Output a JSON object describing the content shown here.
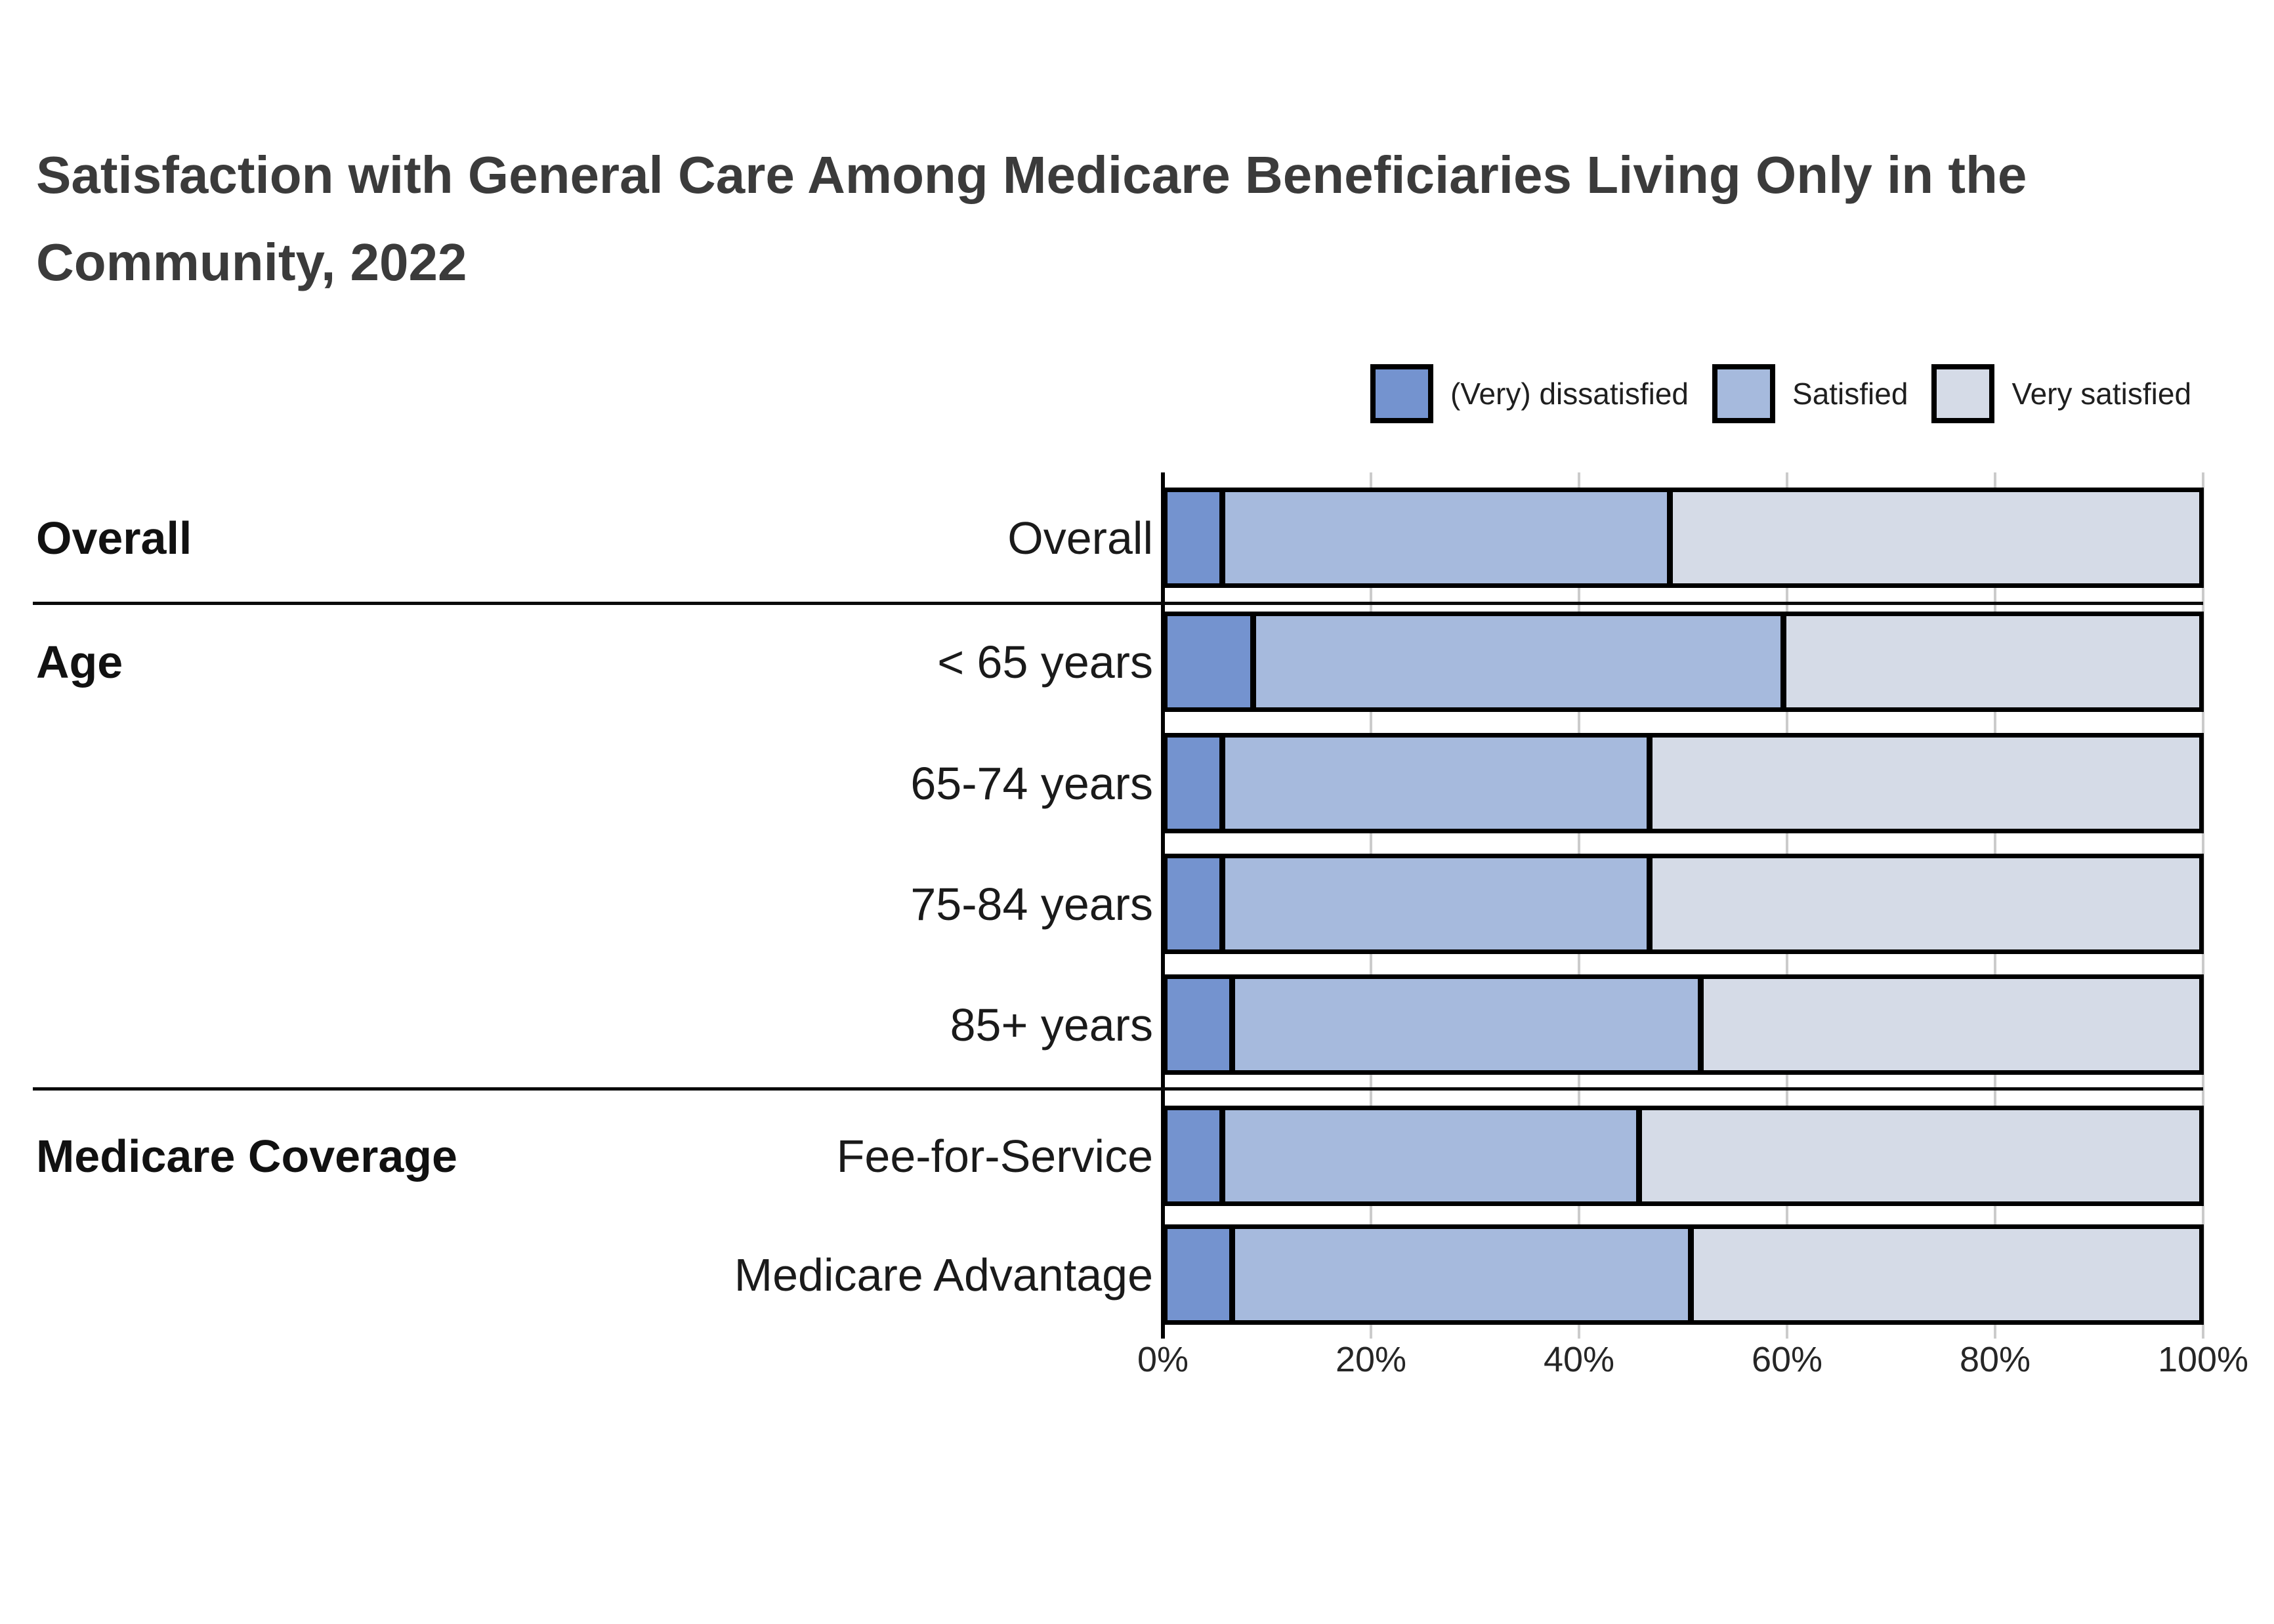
{
  "title": {
    "line1": "Satisfaction with General Care Among Medicare Beneficiaries Living Only in the",
    "line2": "Community, 2022"
  },
  "legend": {
    "items": [
      {
        "label": "(Very) dissatisfied",
        "color": "#7493cf"
      },
      {
        "label": "Satisfied",
        "color": "#a6badd"
      },
      {
        "label": "Very satisfied",
        "color": "#d5dbe7"
      }
    ]
  },
  "colors": {
    "dissatisfied": "#7493cf",
    "satisfied": "#a6badd",
    "very_satisfied": "#d5dbe7",
    "gridline": "#cbcbcb",
    "axis": "#000000",
    "separator": "#0a0a0a",
    "title_text": "#3b3b3b"
  },
  "chart_data": {
    "type": "bar",
    "orientation": "horizontal",
    "stacked": true,
    "title": "Satisfaction with General Care Among Medicare Beneficiaries Living Only in the Community, 2022",
    "xlabel": "",
    "ylabel": "",
    "xlim": [
      0,
      100
    ],
    "x_tick_labels": [
      "0%",
      "20%",
      "40%",
      "60%",
      "80%",
      "100%"
    ],
    "x_tick_values": [
      0,
      20,
      40,
      60,
      80,
      100
    ],
    "grid": true,
    "legend_position": "top-right",
    "groups": [
      {
        "label": "Overall",
        "rows": [
          "Overall"
        ]
      },
      {
        "label": "Age",
        "rows": [
          "< 65 years",
          "65-74 years",
          "75-84 years",
          "85+ years"
        ]
      },
      {
        "label": "Medicare Coverage",
        "rows": [
          "Fee-for-Service",
          "Medicare Advantage"
        ]
      }
    ],
    "categories": [
      "Overall",
      "< 65 years",
      "65-74 years",
      "75-84 years",
      "85+ years",
      "Fee-for-Service",
      "Medicare Advantage"
    ],
    "series": [
      {
        "name": "(Very) dissatisfied",
        "values": [
          5,
          8,
          5,
          5,
          6,
          5,
          6
        ]
      },
      {
        "name": "Satisfied",
        "values": [
          44,
          52,
          42,
          42,
          46,
          41,
          45
        ]
      },
      {
        "name": "Very satisfied",
        "values": [
          51,
          40,
          53,
          53,
          48,
          54,
          49
        ]
      }
    ]
  }
}
